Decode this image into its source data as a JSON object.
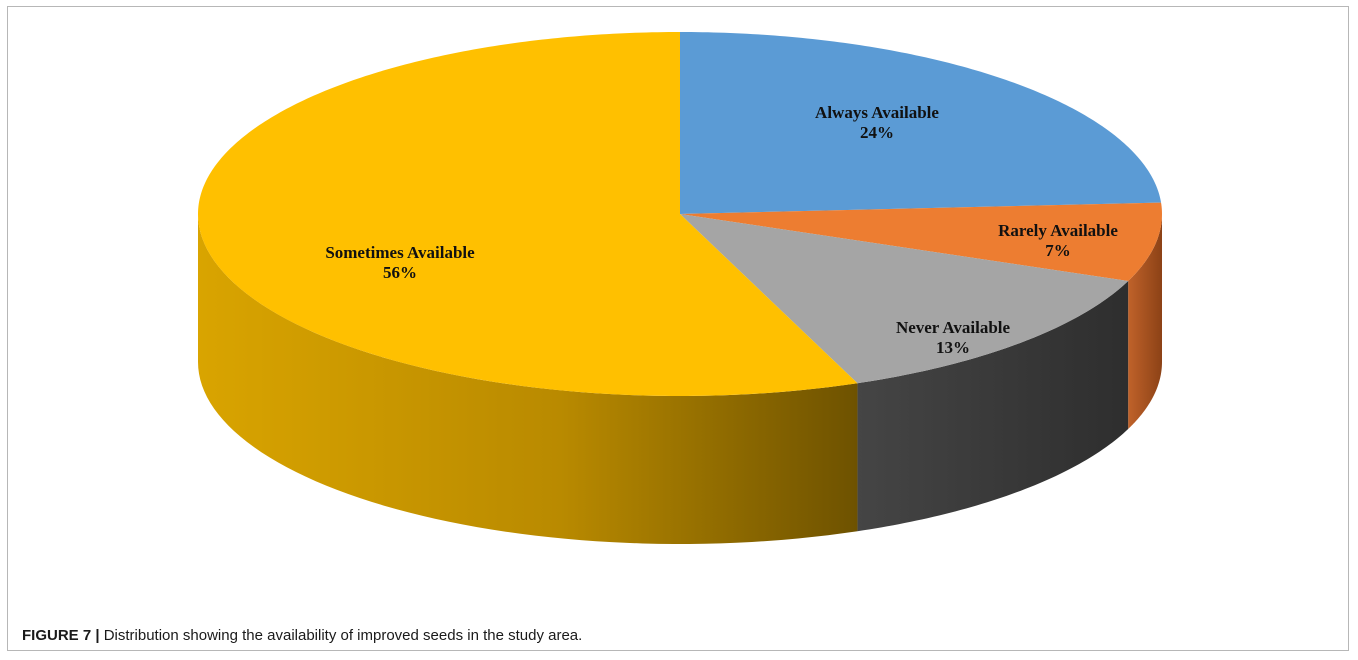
{
  "chart_data": {
    "type": "pie",
    "style": "3d",
    "slices": [
      {
        "label": "Always Available",
        "percent_text": "24%",
        "value": 24,
        "color": "#5b9bd5",
        "side_color": "#3d6f9e"
      },
      {
        "label": "Rarely Available",
        "percent_text": "7%",
        "value": 7,
        "color": "#ed7d31",
        "side_color": "#a8521c"
      },
      {
        "label": "Never Available",
        "percent_text": "13%",
        "value": 13,
        "color": "#a5a5a5",
        "side_color": "#3f3f3f"
      },
      {
        "label": "Sometimes Available",
        "percent_text": "56%",
        "value": 56,
        "color": "#ffc000",
        "side_color": "#c69200"
      }
    ]
  },
  "caption": {
    "label": "FIGURE 7 |",
    "text": " Distribution showing the availability of improved seeds in the study area."
  }
}
